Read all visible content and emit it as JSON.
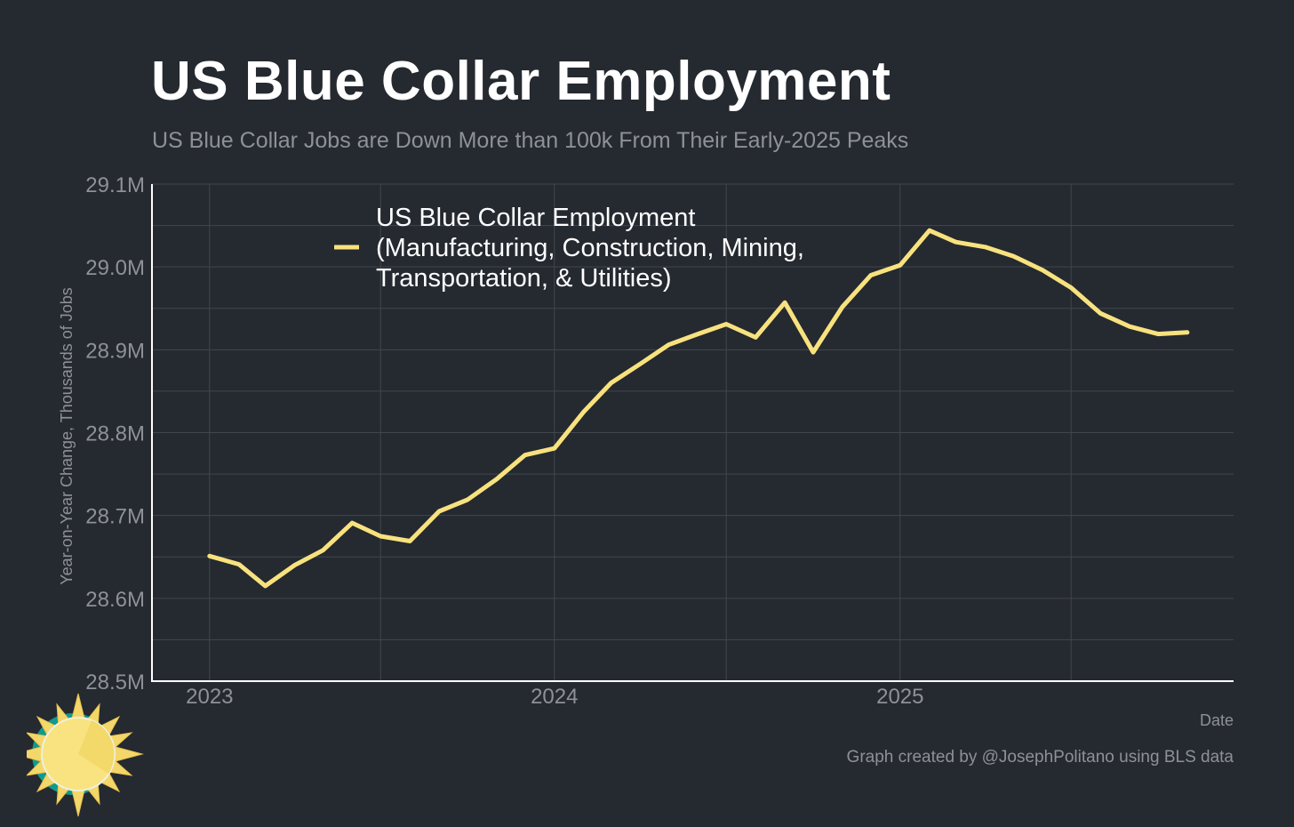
{
  "title": "US Blue Collar Employment",
  "subtitle": "US Blue Collar Jobs are Down More than 100k From Their Early-2025 Peaks",
  "footer": {
    "credit": "Graph created by @JosephPolitano using BLS data"
  },
  "colors": {
    "background": "#252930",
    "line": "#f8e27e",
    "grid": "#42464d",
    "axis": "#ffffff",
    "muted_text": "#8e9197"
  },
  "chart_data": {
    "type": "line",
    "xlabel": "Date",
    "ylabel": "Year-on-Year Change, Thousands of Jobs",
    "xlim": [
      "2022-11-01",
      "2025-12-20"
    ],
    "ylim": [
      28.5,
      29.1
    ],
    "yunit": "M",
    "x_ticks": [
      "2023",
      "2024",
      "2025"
    ],
    "y_ticks": [
      "28.5M",
      "28.6M",
      "28.7M",
      "28.8M",
      "28.9M",
      "29.0M",
      "29.1M"
    ],
    "grid": true,
    "legend_position": "top-left",
    "series": [
      {
        "name": "US Blue Collar Employment (Manufacturing, Construction, Mining, Transportation, & Utilities)",
        "legend_lines": [
          "US Blue Collar Employment",
          "(Manufacturing, Construction, Mining,",
          "Transportation, & Utilities)"
        ],
        "x": [
          "2023-01",
          "2023-02",
          "2023-03",
          "2023-04",
          "2023-05",
          "2023-06",
          "2023-07",
          "2023-08",
          "2023-09",
          "2023-10",
          "2023-11",
          "2023-12",
          "2024-01",
          "2024-02",
          "2024-03",
          "2024-04",
          "2024-05",
          "2024-06",
          "2024-07",
          "2024-08",
          "2024-09",
          "2024-10",
          "2024-11",
          "2024-12",
          "2025-01",
          "2025-02",
          "2025-03",
          "2025-04",
          "2025-05",
          "2025-06",
          "2025-07",
          "2025-08",
          "2025-09",
          "2025-10",
          "2025-11"
        ],
        "values": [
          28.651,
          28.641,
          28.615,
          28.64,
          28.658,
          28.691,
          28.675,
          28.669,
          28.705,
          28.719,
          28.744,
          28.773,
          28.781,
          28.825,
          28.86,
          28.883,
          28.906,
          28.919,
          28.931,
          28.915,
          28.957,
          28.897,
          28.952,
          28.99,
          29.002,
          29.044,
          29.03,
          29.024,
          29.013,
          28.996,
          28.975,
          28.944,
          28.928,
          28.919,
          28.921
        ]
      }
    ]
  }
}
